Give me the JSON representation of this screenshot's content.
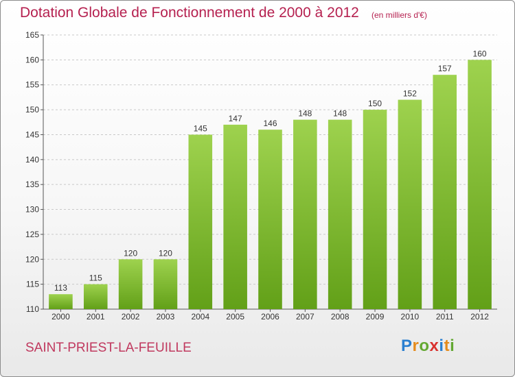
{
  "header": {
    "title": "Dotation Globale de Fonctionnement de 2000 à 2012",
    "subtitle": "(en milliers d'€)"
  },
  "footer": {
    "commune": "SAINT-PRIEST-LA-FEUILLE",
    "logo_letters": [
      "P",
      "r",
      "o",
      "x",
      "i",
      "t",
      "i"
    ],
    "logo_colors": [
      "#2a7fd0",
      "#e58b1c",
      "#63a832",
      "#d9312e",
      "#2a7fd0",
      "#e58b1c",
      "#63a832"
    ]
  },
  "chart_data": {
    "type": "bar",
    "title": "Dotation Globale de Fonctionnement de 2000 à 2012",
    "subtitle": "(en milliers d'€)",
    "xlabel": "",
    "ylabel": "",
    "categories": [
      "2000",
      "2001",
      "2002",
      "2003",
      "2004",
      "2005",
      "2006",
      "2007",
      "2008",
      "2009",
      "2010",
      "2011",
      "2012"
    ],
    "values": [
      113,
      115,
      120,
      120,
      145,
      147,
      146,
      148,
      148,
      150,
      152,
      157,
      160
    ],
    "ylim": [
      110,
      165
    ],
    "yticks": [
      110,
      115,
      120,
      125,
      130,
      135,
      140,
      145,
      150,
      155,
      160,
      165
    ],
    "grid": "horizontal dashed",
    "legend": "none",
    "colors": {
      "bar_light": "#9ed24e",
      "bar_dark": "#62a018",
      "text": "#333333",
      "grid": "#c8c8c8"
    }
  }
}
